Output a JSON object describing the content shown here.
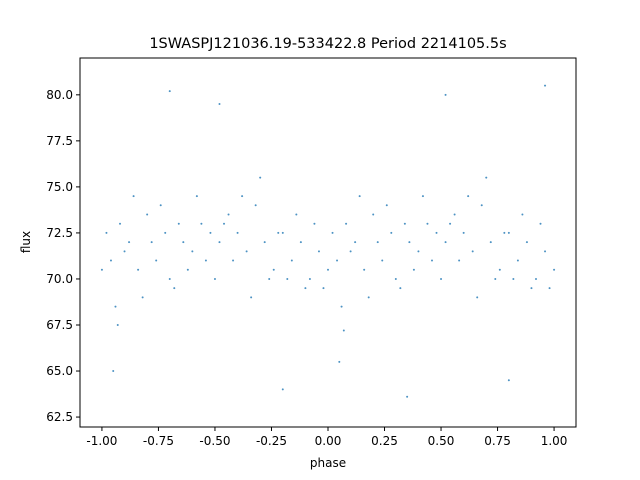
{
  "chart_data": {
    "type": "scatter",
    "title": "1SWASPJ121036.19-533422.8 Period 2214105.5s",
    "x_label": "phase",
    "y_label": "flux",
    "color": "#1f77b4",
    "xlim": [
      -1.097,
      1.097
    ],
    "ylim": [
      61.96,
      82.0
    ],
    "xticks": [
      {
        "value": -1,
        "label": "-1.00"
      },
      {
        "value": -0.75,
        "label": "-0.75"
      },
      {
        "value": -0.5,
        "label": "-0.50"
      },
      {
        "value": -0.25,
        "label": "-0.25"
      },
      {
        "value": 0,
        "label": "0.00"
      },
      {
        "value": 0.25,
        "label": "0.25"
      },
      {
        "value": 0.5,
        "label": "0.50"
      },
      {
        "value": 0.75,
        "label": "0.75"
      },
      {
        "value": 1,
        "label": "1.00"
      }
    ],
    "yticks": [
      62.5,
      {
        "value": 65,
        "label": "65.0"
      },
      67.5,
      {
        "value": 70,
        "label": "70.0"
      },
      72.5,
      {
        "value": 75,
        "label": "75.0"
      },
      77.5,
      {
        "value": 80,
        "label": "80.0"
      }
    ],
    "x": [
      -1.0,
      -0.98,
      -0.96,
      -0.94,
      -0.92,
      -0.9,
      -0.88,
      -0.86,
      -0.84,
      -0.82,
      -0.8,
      -0.78,
      -0.76,
      -0.74,
      -0.72,
      -0.7,
      -0.68,
      -0.66,
      -0.64,
      -0.62,
      -0.6,
      -0.58,
      -0.56,
      -0.54,
      -0.52,
      -0.5,
      -0.48,
      -0.46,
      -0.44,
      -0.42,
      -0.4,
      -0.38,
      -0.36,
      -0.34,
      -0.32,
      -0.3,
      -0.28,
      -0.26,
      -0.24,
      -0.22,
      -0.2,
      -0.18,
      -0.16,
      -0.14,
      -0.12,
      -0.1,
      -0.08,
      -0.06,
      -0.04,
      -0.02,
      0.0,
      0.02,
      0.04,
      0.06,
      0.08,
      0.1,
      0.12,
      0.14,
      0.16,
      0.18,
      0.2,
      0.22,
      0.24,
      0.26,
      0.28,
      0.3,
      0.32,
      0.34,
      0.36,
      0.38,
      0.4,
      0.42,
      0.44,
      0.46,
      0.48,
      0.5,
      0.52,
      0.54,
      0.56,
      0.58,
      0.6,
      0.62,
      0.64,
      0.66,
      0.68,
      0.7,
      0.72,
      0.74,
      0.76,
      0.78,
      0.8,
      0.82,
      0.84,
      0.86,
      0.88,
      0.9,
      0.92,
      0.94,
      0.96,
      0.98,
      1.0,
      -0.93,
      0.07,
      -0.48,
      0.52,
      0.05,
      -0.95,
      0.8,
      -0.2,
      0.35,
      -0.7,
      0.96
    ],
    "y": [
      70.5,
      72.5,
      71.0,
      68.5,
      73.0,
      71.5,
      72.0,
      74.5,
      70.5,
      69.0,
      73.5,
      72.0,
      71.0,
      74.0,
      72.5,
      70.0,
      69.5,
      73.0,
      72.0,
      70.5,
      71.5,
      74.5,
      73.0,
      71.0,
      72.5,
      70.0,
      72.0,
      73.0,
      73.5,
      71.0,
      72.5,
      74.5,
      71.5,
      69.0,
      74.0,
      75.5,
      72.0,
      70.0,
      70.5,
      72.5,
      72.5,
      70.0,
      71.0,
      73.5,
      72.0,
      69.5,
      70.0,
      73.0,
      71.5,
      69.5,
      70.5,
      72.5,
      71.0,
      68.5,
      73.0,
      71.5,
      72.0,
      74.5,
      70.5,
      69.0,
      73.5,
      72.0,
      71.0,
      74.0,
      72.5,
      70.0,
      69.5,
      73.0,
      72.0,
      70.5,
      71.5,
      74.5,
      73.0,
      71.0,
      72.5,
      70.0,
      72.0,
      73.0,
      73.5,
      71.0,
      72.5,
      74.5,
      71.5,
      69.0,
      74.0,
      75.5,
      72.0,
      70.0,
      70.5,
      72.5,
      72.5,
      70.0,
      71.0,
      73.5,
      72.0,
      69.5,
      70.0,
      73.0,
      71.5,
      69.5,
      70.5,
      67.5,
      67.2,
      79.5,
      80.0,
      65.5,
      65.0,
      64.5,
      64.0,
      63.6,
      80.2,
      80.5
    ]
  }
}
